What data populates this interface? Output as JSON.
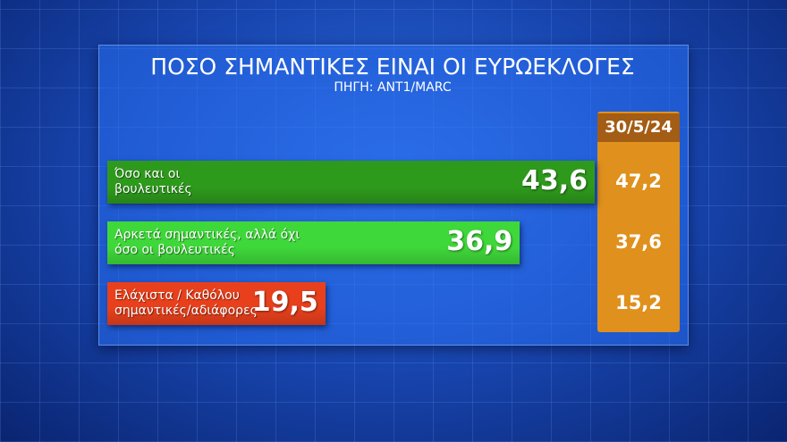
{
  "chart_data": {
    "type": "bar",
    "orientation": "horizontal",
    "title": "ΠΟΣΟ ΣΗΜΑΝΤΙΚΕΣ ΕΙΝΑΙ ΟΙ ΕΥΡΩΕΚΛΟΓΕΣ",
    "subtitle": "ΠΗΓΗ: ANT1/MARC",
    "categories": [
      "Όσο και οι βουλευτικές",
      "Αρκετά σημαντικές, αλλά όχι όσο οι βουλευτικές",
      "Ελάχιστα / Καθόλου σημαντικές/αδιάφορες"
    ],
    "values": [
      43.6,
      36.9,
      19.5
    ],
    "value_labels": [
      "43,6",
      "36,9",
      "19,5"
    ],
    "colors": [
      "#2e9a1c",
      "#3fd83a",
      "#e8401c"
    ],
    "comparison": {
      "name": "30/5/24",
      "color": "#e0901c",
      "values": [
        47.2,
        37.6,
        15.2
      ],
      "value_labels": [
        "47,2",
        "37,6",
        "15,2"
      ]
    }
  }
}
